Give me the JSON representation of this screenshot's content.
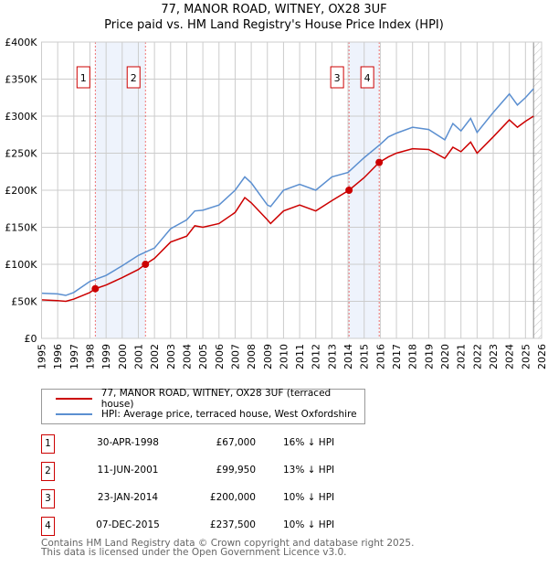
{
  "title": "77, MANOR ROAD, WITNEY, OX28 3UF",
  "subtitle": "Price paid vs. HM Land Registry's House Price Index (HPI)",
  "chart_data": {
    "type": "line",
    "title": "77, MANOR ROAD, WITNEY, OX28 3UF",
    "subtitle": "Price paid vs. HM Land Registry's House Price Index (HPI)",
    "ylim": [
      0,
      400000
    ],
    "xlim": [
      1995,
      2026
    ],
    "yticks": [
      "£0",
      "£50K",
      "£100K",
      "£150K",
      "£200K",
      "£250K",
      "£300K",
      "£350K",
      "£400K"
    ],
    "xticks": [
      "1995",
      "1996",
      "1997",
      "1998",
      "1999",
      "2000",
      "2001",
      "2002",
      "2003",
      "2004",
      "2005",
      "2006",
      "2007",
      "2008",
      "2009",
      "2010",
      "2011",
      "2012",
      "2013",
      "2014",
      "2015",
      "2016",
      "2017",
      "2018",
      "2019",
      "2020",
      "2021",
      "2022",
      "2023",
      "2024",
      "2025",
      "2026"
    ],
    "grid": true,
    "series": [
      {
        "name": "77, MANOR ROAD, WITNEY, OX28 3UF (terraced house)",
        "color": "#cc0000",
        "x": [
          1995,
          1996,
          1996.5,
          1997,
          1998,
          1998.33,
          1999,
          2000,
          2001,
          2001.44,
          2002,
          2003,
          2004,
          2004.5,
          2005,
          2006,
          2007,
          2007.6,
          2008,
          2009,
          2009.2,
          2010,
          2011,
          2012,
          2013,
          2014.06,
          2015,
          2015.93,
          2016.5,
          2017,
          2018,
          2019,
          2020,
          2020.5,
          2021,
          2021.6,
          2022,
          2023,
          2024,
          2024.5,
          2025,
          2025.5
        ],
        "y": [
          52000,
          51000,
          50000,
          53000,
          62000,
          67000,
          72000,
          82000,
          93000,
          99950,
          108000,
          130000,
          138000,
          152000,
          150000,
          155000,
          170000,
          190000,
          183000,
          160000,
          155000,
          172000,
          180000,
          172000,
          186000,
          200000,
          217000,
          237500,
          245000,
          250000,
          256000,
          255000,
          243000,
          258000,
          252000,
          265000,
          250000,
          272000,
          295000,
          285000,
          293000,
          300000
        ]
      },
      {
        "name": "HPI: Average price, terraced house, West Oxfordshire",
        "color": "#5b8fd0",
        "x": [
          1995,
          1996,
          1996.5,
          1997,
          1998,
          1999,
          2000,
          2001,
          2002,
          2003,
          2004,
          2004.5,
          2005,
          2006,
          2007,
          2007.6,
          2008,
          2009,
          2009.2,
          2010,
          2011,
          2012,
          2013,
          2014,
          2015,
          2016,
          2016.5,
          2017,
          2018,
          2019,
          2020,
          2020.5,
          2021,
          2021.6,
          2022,
          2023,
          2024,
          2024.5,
          2025,
          2025.5
        ],
        "y": [
          61000,
          60000,
          58000,
          62000,
          77000,
          85000,
          98000,
          112000,
          122000,
          148000,
          160000,
          172000,
          173000,
          180000,
          200000,
          218000,
          210000,
          180000,
          178000,
          200000,
          208000,
          200000,
          218000,
          224000,
          244000,
          262000,
          272000,
          277000,
          285000,
          282000,
          268000,
          290000,
          280000,
          297000,
          278000,
          305000,
          330000,
          315000,
          325000,
          337000
        ]
      }
    ],
    "sales": [
      {
        "label": "1",
        "x": 1998.33,
        "y": 67000
      },
      {
        "label": "2",
        "x": 2001.44,
        "y": 99950
      },
      {
        "label": "3",
        "x": 2014.06,
        "y": 200000
      },
      {
        "label": "4",
        "x": 2015.93,
        "y": 237500
      }
    ],
    "shaded": [
      [
        1998.33,
        2001.44
      ],
      [
        2014.06,
        2015.93
      ]
    ],
    "hatched_from": 2025.5
  },
  "legend": [
    {
      "label": "77, MANOR ROAD, WITNEY, OX28 3UF (terraced house)",
      "color": "#cc0000"
    },
    {
      "label": "HPI: Average price, terraced house, West Oxfordshire",
      "color": "#5b8fd0"
    }
  ],
  "transactions": [
    {
      "num": "1",
      "date": "30-APR-1998",
      "price": "£67,000",
      "hpi": "16% ↓ HPI"
    },
    {
      "num": "2",
      "date": "11-JUN-2001",
      "price": "£99,950",
      "hpi": "13% ↓ HPI"
    },
    {
      "num": "3",
      "date": "23-JAN-2014",
      "price": "£200,000",
      "hpi": "10% ↓ HPI"
    },
    {
      "num": "4",
      "date": "07-DEC-2015",
      "price": "£237,500",
      "hpi": "10% ↓ HPI"
    }
  ],
  "footer": [
    "Contains HM Land Registry data © Crown copyright and database right 2025.",
    "This data is licensed under the Open Government Licence v3.0."
  ]
}
